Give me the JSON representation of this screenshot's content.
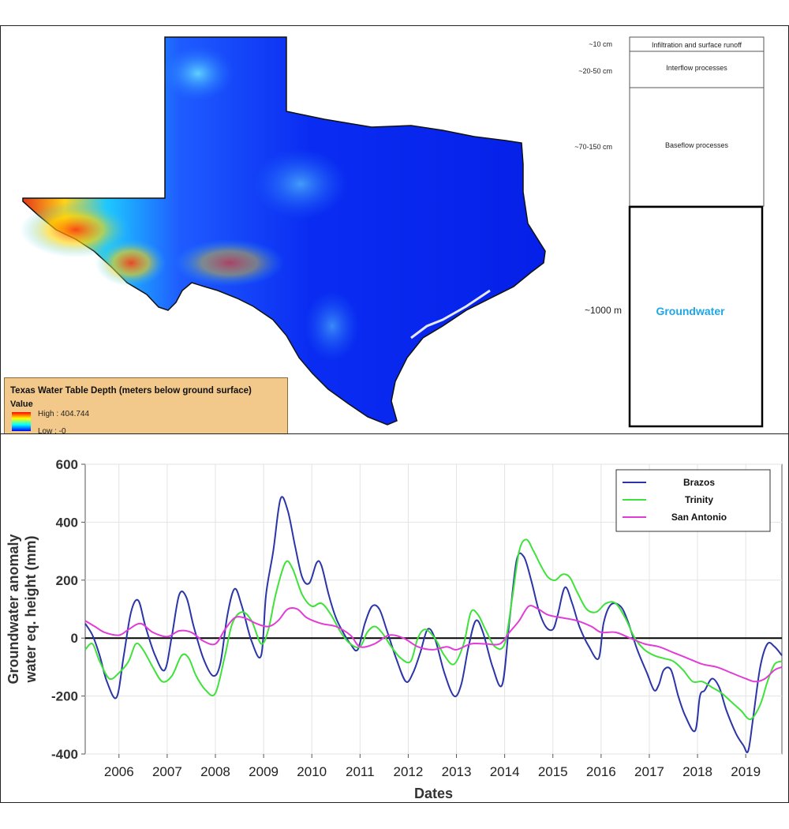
{
  "map": {
    "legend_title": "Texas Water Table Depth (meters below ground surface)",
    "legend_value": "Value",
    "legend_high": "High : 404.744",
    "legend_low": "Low : -0"
  },
  "soil_profile": {
    "layers": [
      {
        "depth": "~10 cm",
        "label": "Infiltration and surface runoff"
      },
      {
        "depth": "~20-50 cm",
        "label": "Interflow processes"
      },
      {
        "depth": "~70-150 cm",
        "label": "Baseflow processes"
      },
      {
        "depth": "~1000 m",
        "label": "Groundwater"
      }
    ],
    "groundwater_color": "#1ea6e6"
  },
  "chart_data": {
    "type": "line",
    "xlabel": "Dates",
    "ylabel": [
      "Groundwater anomaly",
      "water eq. height (mm)"
    ],
    "xlim": [
      2005.3,
      2019.75
    ],
    "ylim": [
      -400,
      600
    ],
    "yticks": [
      -400,
      -200,
      0,
      200,
      400,
      600
    ],
    "xticks": [
      2006,
      2007,
      2008,
      2009,
      2010,
      2011,
      2012,
      2013,
      2014,
      2015,
      2016,
      2017,
      2018,
      2019
    ],
    "xtick_labels": [
      "2006",
      "2007",
      "2008",
      "2009",
      "2010",
      "2011",
      "2012",
      "2013",
      "2014",
      "2015",
      "2016",
      "2017",
      "2018",
      "2019"
    ],
    "grid": true,
    "legend_position": "top-right",
    "zero_line": true,
    "series": [
      {
        "name": "Brazos",
        "color": "#2b35a8",
        "x": [
          2005.3,
          2005.45,
          2005.6,
          2005.75,
          2005.95,
          2006.1,
          2006.25,
          2006.4,
          2006.55,
          2006.75,
          2006.95,
          2007.1,
          2007.25,
          2007.4,
          2007.55,
          2007.75,
          2007.95,
          2008.1,
          2008.25,
          2008.4,
          2008.55,
          2008.75,
          2008.95,
          2009.05,
          2009.2,
          2009.35,
          2009.5,
          2009.65,
          2009.8,
          2009.95,
          2010.1,
          2010.2,
          2010.35,
          2010.5,
          2010.65,
          2010.8,
          2010.95,
          2011.1,
          2011.25,
          2011.4,
          2011.55,
          2011.75,
          2011.95,
          2012.1,
          2012.25,
          2012.4,
          2012.55,
          2012.75,
          2012.95,
          2013.1,
          2013.25,
          2013.4,
          2013.55,
          2013.75,
          2013.95,
          2014.1,
          2014.25,
          2014.4,
          2014.55,
          2014.7,
          2014.85,
          2015.0,
          2015.1,
          2015.25,
          2015.4,
          2015.55,
          2015.75,
          2015.95,
          2016.05,
          2016.2,
          2016.4,
          2016.55,
          2016.75,
          2016.95,
          2017.1,
          2017.2,
          2017.3,
          2017.45,
          2017.6,
          2017.75,
          2017.95,
          2018.05,
          2018.15,
          2018.3,
          2018.45,
          2018.6,
          2018.8,
          2018.95,
          2019.05,
          2019.15,
          2019.3,
          2019.45,
          2019.6,
          2019.75
        ],
        "values": [
          50,
          10,
          -60,
          -150,
          -205,
          -60,
          90,
          130,
          40,
          -60,
          -110,
          10,
          150,
          140,
          40,
          -70,
          -130,
          -90,
          80,
          170,
          110,
          -10,
          -60,
          150,
          300,
          480,
          440,
          320,
          210,
          190,
          260,
          250,
          150,
          70,
          20,
          -20,
          -40,
          50,
          110,
          100,
          30,
          -70,
          -150,
          -120,
          -50,
          30,
          0,
          -120,
          -200,
          -160,
          -30,
          60,
          20,
          -100,
          -160,
          60,
          270,
          280,
          200,
          100,
          40,
          30,
          80,
          175,
          120,
          40,
          -30,
          -70,
          50,
          115,
          110,
          60,
          -40,
          -120,
          -180,
          -160,
          -110,
          -110,
          -200,
          -270,
          -320,
          -200,
          -180,
          -140,
          -170,
          -250,
          -330,
          -370,
          -390,
          -280,
          -100,
          -20,
          -30,
          -60
        ]
      },
      {
        "name": "Trinity",
        "color": "#3fe23a",
        "x": [
          2005.3,
          2005.45,
          2005.6,
          2005.8,
          2006.0,
          2006.2,
          2006.35,
          2006.5,
          2006.7,
          2006.9,
          2007.1,
          2007.3,
          2007.45,
          2007.6,
          2007.8,
          2008.0,
          2008.2,
          2008.35,
          2008.55,
          2008.75,
          2008.95,
          2009.1,
          2009.25,
          2009.45,
          2009.6,
          2009.8,
          2010.0,
          2010.2,
          2010.4,
          2010.6,
          2010.8,
          2011.0,
          2011.15,
          2011.3,
          2011.45,
          2011.65,
          2011.85,
          2012.05,
          2012.2,
          2012.35,
          2012.55,
          2012.75,
          2012.95,
          2013.15,
          2013.3,
          2013.45,
          2013.6,
          2013.8,
          2014.0,
          2014.15,
          2014.3,
          2014.45,
          2014.6,
          2014.75,
          2014.9,
          2015.05,
          2015.2,
          2015.35,
          2015.5,
          2015.7,
          2015.9,
          2016.1,
          2016.3,
          2016.5,
          2016.7,
          2016.9,
          2017.1,
          2017.3,
          2017.5,
          2017.7,
          2017.9,
          2018.1,
          2018.3,
          2018.5,
          2018.7,
          2018.9,
          2019.1,
          2019.3,
          2019.45,
          2019.6,
          2019.75
        ],
        "values": [
          -40,
          -20,
          -80,
          -140,
          -120,
          -80,
          -20,
          -40,
          -100,
          -150,
          -130,
          -60,
          -70,
          -130,
          -180,
          -190,
          -60,
          50,
          90,
          60,
          -20,
          30,
          150,
          260,
          240,
          150,
          110,
          120,
          80,
          20,
          -20,
          -30,
          20,
          40,
          20,
          -30,
          -70,
          -80,
          0,
          30,
          0,
          -60,
          -90,
          -20,
          90,
          80,
          30,
          -30,
          -20,
          130,
          300,
          340,
          300,
          250,
          210,
          200,
          220,
          210,
          160,
          100,
          90,
          120,
          120,
          70,
          0,
          -40,
          -60,
          -70,
          -80,
          -110,
          -150,
          -150,
          -170,
          -190,
          -220,
          -250,
          -280,
          -230,
          -150,
          -90,
          -80
        ]
      },
      {
        "name": "San Antonio",
        "color": "#e23cd8",
        "x": [
          2005.3,
          2005.5,
          2005.7,
          2006.0,
          2006.2,
          2006.45,
          2006.7,
          2007.0,
          2007.25,
          2007.5,
          2007.75,
          2008.0,
          2008.2,
          2008.4,
          2008.6,
          2008.85,
          2009.1,
          2009.3,
          2009.5,
          2009.7,
          2009.9,
          2010.2,
          2010.5,
          2010.8,
          2011.0,
          2011.3,
          2011.6,
          2011.9,
          2012.2,
          2012.5,
          2012.8,
          2013.0,
          2013.3,
          2013.6,
          2013.9,
          2014.1,
          2014.3,
          2014.5,
          2014.7,
          2014.9,
          2015.2,
          2015.5,
          2015.8,
          2016.0,
          2016.3,
          2016.6,
          2016.9,
          2017.2,
          2017.5,
          2017.8,
          2018.1,
          2018.4,
          2018.7,
          2019.0,
          2019.2,
          2019.4,
          2019.6,
          2019.75
        ],
        "values": [
          60,
          40,
          20,
          10,
          30,
          50,
          20,
          5,
          25,
          20,
          -10,
          -20,
          30,
          70,
          70,
          50,
          40,
          60,
          100,
          100,
          70,
          50,
          40,
          10,
          -30,
          -20,
          10,
          0,
          -30,
          -40,
          -30,
          -40,
          -20,
          -20,
          -20,
          20,
          60,
          110,
          100,
          80,
          70,
          60,
          40,
          20,
          20,
          0,
          -20,
          -30,
          -50,
          -70,
          -90,
          -100,
          -120,
          -140,
          -150,
          -140,
          -110,
          -100
        ]
      }
    ]
  }
}
